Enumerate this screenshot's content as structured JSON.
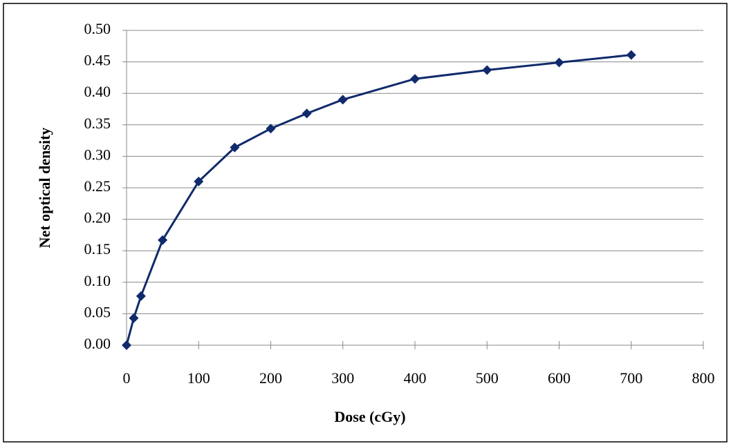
{
  "chart_data": {
    "type": "line",
    "x_label": "Dose (cGy)",
    "y_label": "Net optical density",
    "x": [
      0,
      10,
      20,
      50,
      100,
      150,
      200,
      250,
      300,
      400,
      500,
      600,
      700
    ],
    "series": [
      {
        "color": "#102a6b",
        "values": [
          0.0,
          0.043,
          0.078,
          0.167,
          0.26,
          0.314,
          0.344,
          0.368,
          0.39,
          0.423,
          0.437,
          0.449,
          0.461
        ]
      }
    ],
    "xlim": [
      0,
      800
    ],
    "xticks": [
      0,
      100,
      200,
      300,
      400,
      500,
      600,
      700,
      800
    ],
    "ylim": [
      0,
      0.5
    ],
    "yticks": [
      {
        "value": 0,
        "label": "0.00"
      },
      {
        "value": 0.05,
        "label": "0.05"
      },
      {
        "value": 0.1,
        "label": "0.10"
      },
      {
        "value": 0.15,
        "label": "0.15"
      },
      {
        "value": 0.2,
        "label": "0.20"
      },
      {
        "value": 0.25,
        "label": "0.25"
      },
      {
        "value": 0.3,
        "label": "0.30"
      },
      {
        "value": 0.35,
        "label": "0.35"
      },
      {
        "value": 0.4,
        "label": "0.40"
      },
      {
        "value": 0.45,
        "label": "0.45"
      },
      {
        "value": 0.5,
        "label": "0.50"
      }
    ],
    "grid": true
  }
}
